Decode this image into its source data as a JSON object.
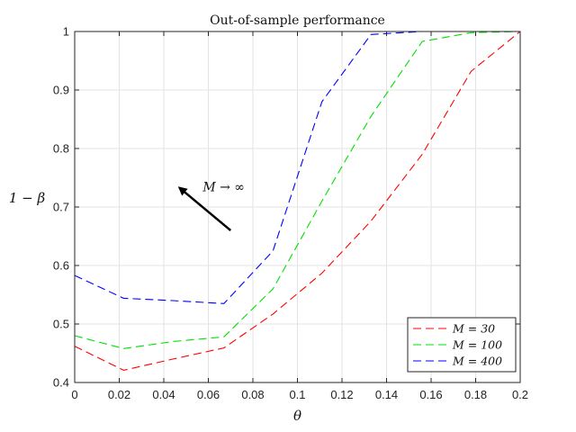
{
  "chart_data": {
    "type": "line",
    "title": "Out-of-sample performance",
    "xlabel": "θ",
    "ylabel": "1 − β",
    "xlim": [
      0,
      0.2
    ],
    "ylim": [
      0.4,
      1.0
    ],
    "x_ticks": [
      "0",
      "0.02",
      "0.04",
      "0.06",
      "0.08",
      "0.1",
      "0.12",
      "0.14",
      "0.16",
      "0.18",
      "0.2"
    ],
    "y_ticks": [
      "0.4",
      "0.5",
      "0.6",
      "0.7",
      "0.8",
      "0.9",
      "1"
    ],
    "grid": true,
    "legend_position": "bottom-right",
    "series": [
      {
        "name": "M = 30",
        "color": "#ff0000",
        "style": "dashed",
        "x": [
          0,
          0.022,
          0.044,
          0.067,
          0.089,
          0.111,
          0.133,
          0.156,
          0.178,
          0.2
        ],
        "y": [
          0.462,
          0.421,
          0.44,
          0.459,
          0.517,
          0.587,
          0.676,
          0.79,
          0.932,
          1.0
        ]
      },
      {
        "name": "M = 100",
        "color": "#00e000",
        "style": "dashed",
        "x": [
          0,
          0.022,
          0.044,
          0.067,
          0.089,
          0.111,
          0.133,
          0.156,
          0.178,
          0.2
        ],
        "y": [
          0.48,
          0.458,
          0.47,
          0.478,
          0.56,
          0.71,
          0.855,
          0.983,
          0.998,
          1.0
        ]
      },
      {
        "name": "M = 400",
        "color": "#0000ff",
        "style": "dashed",
        "x": [
          0,
          0.022,
          0.044,
          0.067,
          0.089,
          0.111,
          0.133,
          0.156,
          0.178,
          0.2
        ],
        "y": [
          0.583,
          0.544,
          0.54,
          0.535,
          0.625,
          0.88,
          0.995,
          1.0,
          1.0,
          1.0
        ]
      }
    ],
    "annotation": {
      "label": "M → ∞",
      "arrow_from": [
        0.07,
        0.66
      ],
      "arrow_to": [
        0.047,
        0.733
      ]
    }
  }
}
